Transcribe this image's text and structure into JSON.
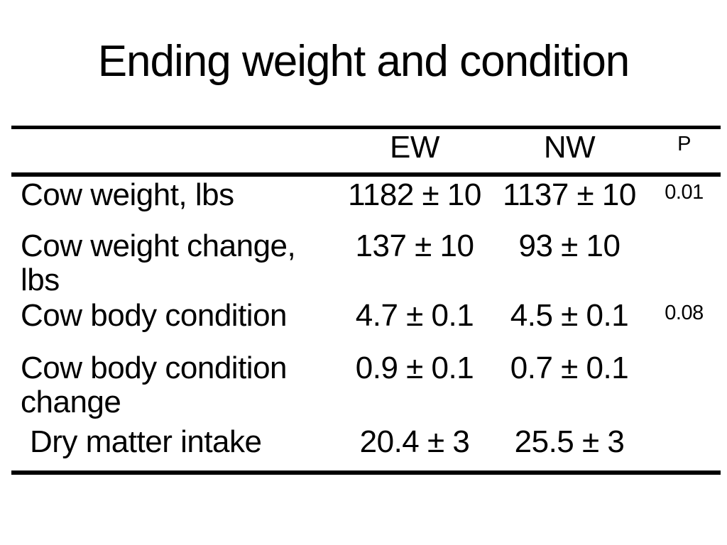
{
  "title": "Ending weight and condition",
  "colors": {
    "background": "#ffffff",
    "text": "#000000",
    "rule": "#000000"
  },
  "table": {
    "columns": {
      "ew": "EW",
      "nw": "NW",
      "p": "P"
    },
    "rows": [
      {
        "label": "Cow weight, lbs",
        "ew": "1182 ± 10",
        "nw": "1137 ± 10",
        "p": "0.01"
      },
      {
        "label": "Cow weight change, lbs",
        "ew": "137 ± 10",
        "nw": "93 ± 10",
        "p": ""
      },
      {
        "label": "Cow body condition",
        "ew": "4.7 ± 0.1",
        "nw": "4.5 ± 0.1",
        "p": "0.08"
      },
      {
        "label": "Cow body condition change",
        "ew": "0.9 ± 0.1",
        "nw": "0.7 ± 0.1",
        "p": ""
      },
      {
        "label": "Dry matter intake",
        "ew": "20.4 ± 3",
        "nw": "25.5 ± 3",
        "p": ""
      }
    ]
  }
}
